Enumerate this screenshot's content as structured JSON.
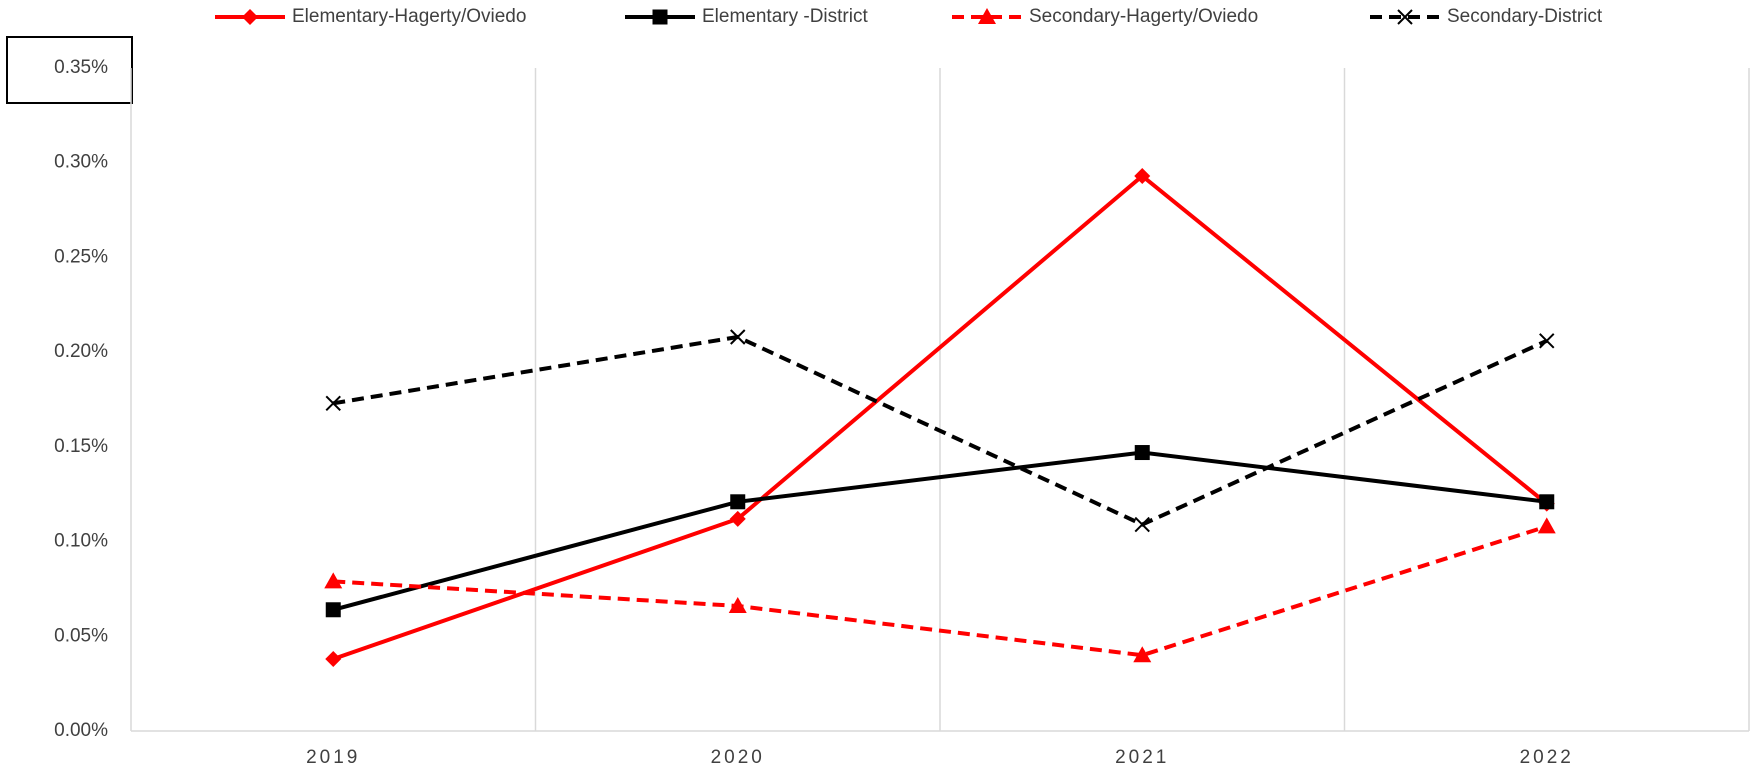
{
  "chart_data": {
    "type": "line",
    "categories": [
      "2019",
      "2020",
      "2021",
      "2022"
    ],
    "series": [
      {
        "name": "Elementary-Hagerty/Oviedo",
        "color": "#ff0000",
        "marker": "diamond",
        "line_style": "solid",
        "values": [
          0.038,
          0.112,
          0.293,
          0.12
        ]
      },
      {
        "name": "Elementary -District",
        "color": "#000000",
        "marker": "square",
        "line_style": "solid",
        "values": [
          0.064,
          0.121,
          0.147,
          0.121
        ]
      },
      {
        "name": "Secondary-Hagerty/Oviedo",
        "color": "#ff0000",
        "marker": "triangle",
        "line_style": "dashed",
        "values": [
          0.079,
          0.066,
          0.04,
          0.108
        ]
      },
      {
        "name": "Secondary-District",
        "color": "#000000",
        "marker": "x",
        "line_style": "dashed",
        "values": [
          0.173,
          0.208,
          0.109,
          0.206
        ]
      }
    ],
    "ylim": [
      0,
      0.35
    ],
    "yticks": [
      {
        "value": 0,
        "label": "0.00%"
      },
      {
        "value": 0.05,
        "label": "0.05%"
      },
      {
        "value": 0.1,
        "label": "0.10%"
      },
      {
        "value": 0.15,
        "label": "0.15%"
      },
      {
        "value": 0.2,
        "label": "0.20%"
      },
      {
        "value": 0.25,
        "label": "0.25%"
      },
      {
        "value": 0.3,
        "label": "0.30%"
      },
      {
        "value": 0.35,
        "label": "0.35%"
      }
    ],
    "grid": "vertical",
    "legend": "top"
  }
}
